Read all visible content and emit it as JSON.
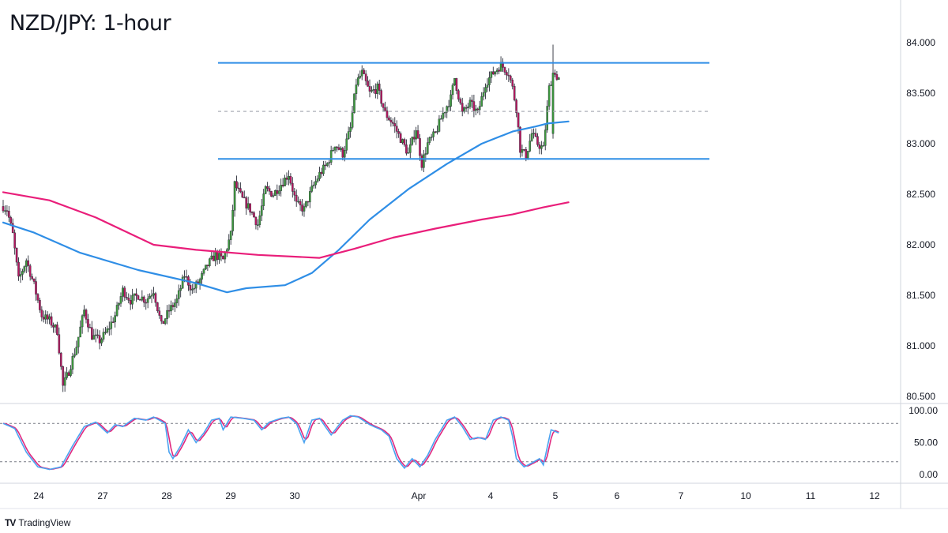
{
  "title": "NZD/JPY: 1-hour",
  "brand": {
    "logo": "TV",
    "name": "TradingView"
  },
  "colors": {
    "bull": "#3d9a3d",
    "bear": "#b5175f",
    "wick": "#2a2e39",
    "ma_fast": "#2f8ee6",
    "ma_slow": "#e91e7a",
    "range_lines": "#2f8ee6",
    "stoch_k": "#4aa3f0",
    "stoch_d": "#e0287f"
  },
  "chart_data": [
    {
      "type": "line",
      "subtype": "candlestick",
      "title": "NZD/JPY: 1-hour",
      "ylim": [
        80.32,
        84.22
      ],
      "y_ticks": [
        "84.000",
        "83.500",
        "83.000",
        "82.500",
        "82.000",
        "81.500",
        "81.000",
        "80.500"
      ],
      "x_ticks": [
        "24",
        "27",
        "28",
        "29",
        "30",
        "Apr",
        "4",
        "5",
        "6",
        "7",
        "10",
        "11",
        "12"
      ],
      "grid": false,
      "price_anchors": [
        [
          0,
          82.38
        ],
        [
          2,
          82.35
        ],
        [
          5,
          82.1
        ],
        [
          8,
          81.65
        ],
        [
          12,
          81.85
        ],
        [
          16,
          81.6
        ],
        [
          20,
          81.3
        ],
        [
          24,
          81.25
        ],
        [
          28,
          81.15
        ],
        [
          31,
          80.6
        ],
        [
          34,
          80.75
        ],
        [
          38,
          81.0
        ],
        [
          42,
          81.35
        ],
        [
          46,
          81.1
        ],
        [
          50,
          81.05
        ],
        [
          54,
          81.15
        ],
        [
          58,
          81.3
        ],
        [
          62,
          81.55
        ],
        [
          66,
          81.45
        ],
        [
          70,
          81.5
        ],
        [
          74,
          81.45
        ],
        [
          78,
          81.55
        ],
        [
          82,
          81.2
        ],
        [
          86,
          81.35
        ],
        [
          90,
          81.45
        ],
        [
          94,
          81.7
        ],
        [
          98,
          81.55
        ],
        [
          102,
          81.65
        ],
        [
          106,
          81.8
        ],
        [
          110,
          81.9
        ],
        [
          114,
          81.85
        ],
        [
          118,
          82.1
        ],
        [
          120,
          82.6
        ],
        [
          124,
          82.45
        ],
        [
          128,
          82.35
        ],
        [
          132,
          82.2
        ],
        [
          136,
          82.55
        ],
        [
          140,
          82.5
        ],
        [
          144,
          82.6
        ],
        [
          148,
          82.7
        ],
        [
          152,
          82.4
        ],
        [
          156,
          82.35
        ],
        [
          160,
          82.55
        ],
        [
          164,
          82.7
        ],
        [
          168,
          82.8
        ],
        [
          172,
          83.0
        ],
        [
          176,
          82.9
        ],
        [
          180,
          83.15
        ],
        [
          183,
          83.6
        ],
        [
          186,
          83.7
        ],
        [
          190,
          83.5
        ],
        [
          194,
          83.55
        ],
        [
          198,
          83.3
        ],
        [
          202,
          83.2
        ],
        [
          206,
          83.05
        ],
        [
          210,
          82.9
        ],
        [
          214,
          83.15
        ],
        [
          217,
          82.8
        ],
        [
          220,
          83.0
        ],
        [
          224,
          83.1
        ],
        [
          228,
          83.3
        ],
        [
          232,
          83.45
        ],
        [
          234,
          83.65
        ],
        [
          238,
          83.3
        ],
        [
          242,
          83.4
        ],
        [
          246,
          83.3
        ],
        [
          250,
          83.6
        ],
        [
          254,
          83.7
        ],
        [
          258,
          83.78
        ],
        [
          262,
          83.7
        ],
        [
          264,
          83.55
        ],
        [
          266,
          83.35
        ],
        [
          268,
          82.95
        ],
        [
          271,
          82.88
        ],
        [
          274,
          83.1
        ],
        [
          277,
          83.0
        ],
        [
          280,
          82.95
        ],
        [
          283,
          83.55
        ],
        [
          285,
          83.7
        ],
        [
          288,
          83.65
        ]
      ],
      "special_candles": [
        [
          285,
          83.1,
          83.98,
          83.05,
          83.7
        ]
      ],
      "series": [
        {
          "name": "",
          "values": [
            [
              0,
              82.22
            ],
            [
              16,
              82.12
            ],
            [
              40,
              81.92
            ],
            [
              70,
              81.75
            ],
            [
              100,
              81.62
            ],
            [
              116,
              81.53
            ],
            [
              126,
              81.57
            ],
            [
              146,
              81.6
            ],
            [
              160,
              81.72
            ],
            [
              174,
              81.95
            ],
            [
              190,
              82.25
            ],
            [
              210,
              82.55
            ],
            [
              230,
              82.8
            ],
            [
              248,
              83.0
            ],
            [
              264,
              83.12
            ],
            [
              276,
              83.17
            ],
            [
              282,
              83.2
            ],
            [
              293,
              83.22
            ]
          ]
        },
        {
          "name": "",
          "values": [
            [
              0,
              82.52
            ],
            [
              24,
              82.44
            ],
            [
              48,
              82.27
            ],
            [
              78,
              82.0
            ],
            [
              100,
              81.95
            ],
            [
              132,
              81.9
            ],
            [
              164,
              81.87
            ],
            [
              182,
              81.96
            ],
            [
              202,
              82.07
            ],
            [
              224,
              82.16
            ],
            [
              248,
              82.25
            ],
            [
              264,
              82.3
            ],
            [
              280,
              82.37
            ],
            [
              293,
              82.42
            ]
          ]
        }
      ],
      "range_lines": [
        83.8,
        82.85
      ],
      "midline": 83.32
    },
    {
      "type": "line",
      "subtype": "stochastic",
      "ylim": [
        0,
        100
      ],
      "y_ticks": [
        "100.00",
        "50.00",
        "0.00"
      ],
      "levels": [
        80,
        20
      ],
      "k_anchors": [
        [
          0,
          80
        ],
        [
          6,
          72
        ],
        [
          12,
          35
        ],
        [
          18,
          12
        ],
        [
          24,
          8
        ],
        [
          30,
          12
        ],
        [
          36,
          45
        ],
        [
          42,
          75
        ],
        [
          48,
          82
        ],
        [
          54,
          65
        ],
        [
          58,
          78
        ],
        [
          62,
          75
        ],
        [
          68,
          88
        ],
        [
          74,
          85
        ],
        [
          78,
          90
        ],
        [
          84,
          80
        ],
        [
          86,
          35
        ],
        [
          88,
          25
        ],
        [
          92,
          45
        ],
        [
          96,
          70
        ],
        [
          100,
          50
        ],
        [
          104,
          65
        ],
        [
          108,
          85
        ],
        [
          112,
          88
        ],
        [
          114,
          70
        ],
        [
          118,
          90
        ],
        [
          124,
          88
        ],
        [
          130,
          85
        ],
        [
          134,
          70
        ],
        [
          138,
          82
        ],
        [
          144,
          88
        ],
        [
          148,
          90
        ],
        [
          152,
          80
        ],
        [
          156,
          50
        ],
        [
          160,
          85
        ],
        [
          164,
          88
        ],
        [
          170,
          62
        ],
        [
          176,
          85
        ],
        [
          180,
          92
        ],
        [
          184,
          90
        ],
        [
          190,
          78
        ],
        [
          196,
          70
        ],
        [
          200,
          60
        ],
        [
          204,
          25
        ],
        [
          208,
          10
        ],
        [
          212,
          25
        ],
        [
          216,
          12
        ],
        [
          220,
          30
        ],
        [
          224,
          55
        ],
        [
          230,
          85
        ],
        [
          234,
          90
        ],
        [
          238,
          75
        ],
        [
          242,
          55
        ],
        [
          246,
          58
        ],
        [
          250,
          55
        ],
        [
          254,
          85
        ],
        [
          258,
          90
        ],
        [
          262,
          85
        ],
        [
          264,
          60
        ],
        [
          266,
          25
        ],
        [
          270,
          12
        ],
        [
          274,
          18
        ],
        [
          278,
          25
        ],
        [
          280,
          15
        ],
        [
          284,
          70
        ],
        [
          288,
          65
        ]
      ]
    }
  ]
}
